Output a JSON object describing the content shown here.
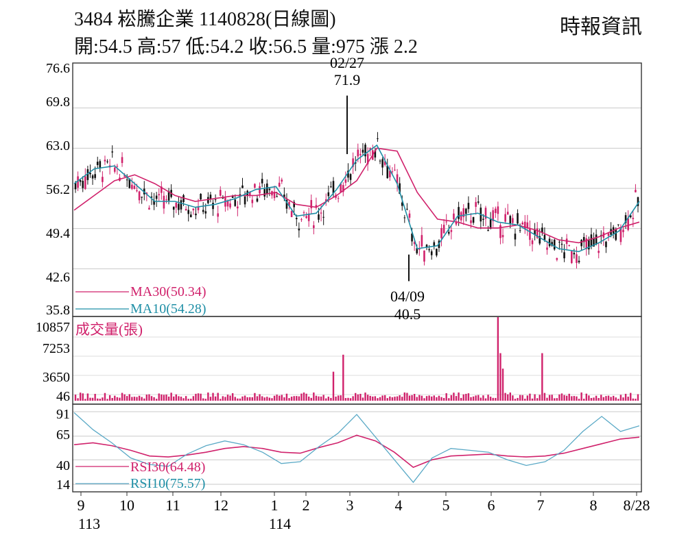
{
  "header": {
    "title": "3484  崧騰企業 1140828(日線圖)",
    "summary": "開:54.5 高:57 低:54.2 收:56.5 量:975 漲 2.2",
    "source": "時報資訊"
  },
  "chart_data": [
    {
      "type": "candlestick",
      "ylim": [
        35.8,
        76.6
      ],
      "y_ticks": [
        "76.6",
        "69.8",
        "63.0",
        "56.2",
        "49.4",
        "42.6",
        "35.8"
      ],
      "ohlc_latest": {
        "open": 54.5,
        "high": 57,
        "low": 54.2,
        "close": 56.5,
        "volume": 975,
        "change": 2.2
      },
      "annotations": [
        {
          "date": "02/27",
          "value": "71.9",
          "kind": "high"
        },
        {
          "date": "04/09",
          "value": "40.5",
          "kind": "low"
        }
      ],
      "series": [
        {
          "name": "MA30(50.34)",
          "color": "#d0216b",
          "values": [
            52.5,
            55,
            57.5,
            58.5,
            57,
            55,
            54,
            54.5,
            55,
            55,
            55.5,
            53.5,
            53,
            55,
            57.5,
            63,
            62.5,
            55.5,
            51,
            50.5,
            49.5,
            49.5,
            50,
            49,
            47.5,
            47,
            48,
            49.5,
            50.5
          ]
        },
        {
          "name": "MA10(54.28)",
          "color": "#1f8fa6",
          "values": [
            57,
            59.5,
            60,
            57,
            54,
            54,
            53,
            53.5,
            54.5,
            56,
            56.5,
            51.5,
            52,
            56,
            61,
            63.5,
            57,
            46,
            46.5,
            51.5,
            52,
            50.5,
            50,
            48,
            46,
            45.5,
            47,
            49,
            54
          ]
        }
      ],
      "candles_per_month": [
        [
          56.5,
          62.5
        ],
        [
          61,
          57
        ],
        [
          54,
          53
        ],
        [
          52.5,
          55
        ],
        [
          55,
          57
        ],
        [
          56,
          58
        ],
        [
          52,
          51
        ],
        [
          54,
          62
        ],
        [
          63,
          68
        ],
        [
          64,
          62
        ],
        [
          52,
          46
        ],
        [
          45,
          47
        ],
        [
          50,
          51
        ],
        [
          50,
          49
        ],
        [
          48,
          46
        ],
        [
          46,
          47
        ],
        [
          49,
          53
        ],
        [
          53,
          56
        ]
      ]
    },
    {
      "type": "bar",
      "title": "成交量(張)",
      "ylim": [
        46,
        10857
      ],
      "y_ticks": [
        "10857",
        "7253",
        "3650",
        "46"
      ],
      "color": "#d0216b",
      "highlights": [
        {
          "label": "02/27",
          "value": 10857
        },
        {
          "label": "",
          "value": 6200
        },
        {
          "label": "",
          "value": 4200
        },
        {
          "label": "",
          "value": 6000
        },
        {
          "label": "",
          "value": 3800
        }
      ],
      "typical_value": 700
    },
    {
      "type": "line",
      "ylim": [
        14,
        91
      ],
      "y_ticks": [
        "91",
        "65",
        "40",
        "14"
      ],
      "series": [
        {
          "name": "RSI30(64.48)",
          "color": "#d0216b",
          "values": [
            56,
            58,
            55,
            50,
            44,
            43,
            45,
            48,
            52,
            54,
            52,
            48,
            47,
            53,
            58,
            66,
            60,
            48,
            32,
            40,
            44,
            45,
            46,
            44,
            43,
            44,
            47,
            52,
            57,
            62,
            64
          ]
        },
        {
          "name": "RSI10(75.57)",
          "color": "#1f8fa6",
          "values": [
            90,
            72,
            58,
            42,
            35,
            33,
            46,
            55,
            60,
            56,
            48,
            36,
            38,
            54,
            68,
            88,
            64,
            40,
            16,
            42,
            52,
            50,
            48,
            40,
            34,
            38,
            50,
            70,
            86,
            70,
            76
          ]
        }
      ]
    }
  ],
  "x_axis": {
    "ticks": [
      "9",
      "10",
      "11",
      "12",
      "1",
      "2",
      "3",
      "4",
      "5",
      "6",
      "7",
      "8",
      "8/28"
    ],
    "years": [
      "113",
      "114"
    ]
  }
}
